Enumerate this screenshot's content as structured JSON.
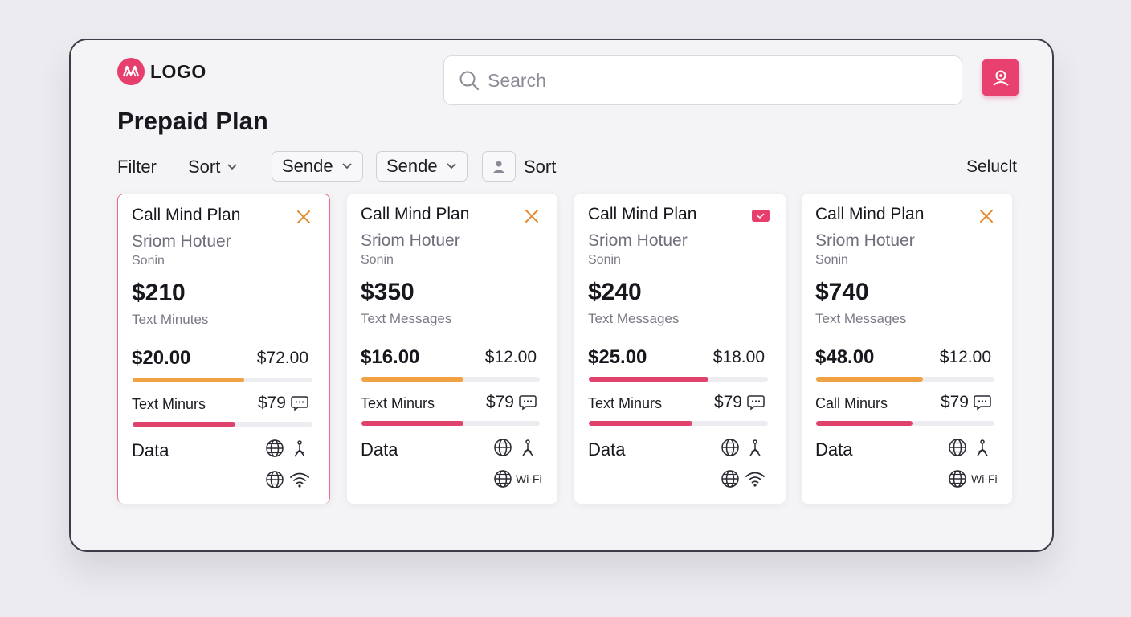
{
  "header": {
    "logo_text": "LOGO",
    "search_placeholder": "Search",
    "page_title": "Prepaid Plan"
  },
  "toolbar": {
    "filter_label": "Filter",
    "sort_label": "Sort",
    "dropdown1_value": "Sende",
    "dropdown2_value": "Sende",
    "sort2_label": "Sort",
    "select_label": "Seluclt"
  },
  "colors": {
    "accent": "#e63e6d",
    "bar_orange": "#f0a244",
    "bar_pink": "#e0426e",
    "close_orange": "#e68a2e"
  },
  "cards": [
    {
      "title": "Call Mind Plan",
      "subtitle": "Sriom Hotuer",
      "subtitle2": "Sonin",
      "price": "$210",
      "price_label": "Text Minutes",
      "amount_left": "$20.00",
      "amount_right": "$72.00",
      "bar1_fraction": 0.62,
      "bar1_color": "orange",
      "minutes_label": "Text Minurs",
      "minutes_value": "$79",
      "bar2_fraction": 0.57,
      "data_label": "Data",
      "corner_icon": "close-icon",
      "bottom_icon": "wifi-icon",
      "wifi_text": ""
    },
    {
      "title": "Call Mind Plan",
      "subtitle": "Sriom Hotuer",
      "subtitle2": "Sonin",
      "price": "$350",
      "price_label": "Text Messages",
      "amount_left": "$16.00",
      "amount_right": "$12.00",
      "bar1_fraction": 0.57,
      "bar1_color": "orange",
      "minutes_label": "Text Minurs",
      "minutes_value": "$79",
      "bar2_fraction": 0.57,
      "data_label": "Data",
      "corner_icon": "close-icon",
      "bottom_icon": "wifi-text",
      "wifi_text": "Wi-Fi"
    },
    {
      "title": "Call Mind Plan",
      "subtitle": "Sriom Hotuer",
      "subtitle2": "Sonin",
      "price": "$240",
      "price_label": "Text Messages",
      "amount_left": "$25.00",
      "amount_right": "$18.00",
      "bar1_fraction": 0.67,
      "bar1_color": "pink",
      "minutes_label": "Text Minurs",
      "minutes_value": "$79",
      "bar2_fraction": 0.58,
      "data_label": "Data",
      "corner_icon": "badge-icon",
      "bottom_icon": "wifi-icon",
      "wifi_text": ""
    },
    {
      "title": "Call Mind Plan",
      "subtitle": "Sriom Hotuer",
      "subtitle2": "Sonin",
      "price": "$740",
      "price_label": "Text Messages",
      "amount_left": "$48.00",
      "amount_right": "$12.00",
      "bar1_fraction": 0.6,
      "bar1_color": "orange",
      "minutes_label": "Call Minurs",
      "minutes_value": "$79",
      "bar2_fraction": 0.54,
      "data_label": "Data",
      "corner_icon": "close-icon",
      "bottom_icon": "wifi-text",
      "wifi_text": "Wi-Fi"
    }
  ]
}
